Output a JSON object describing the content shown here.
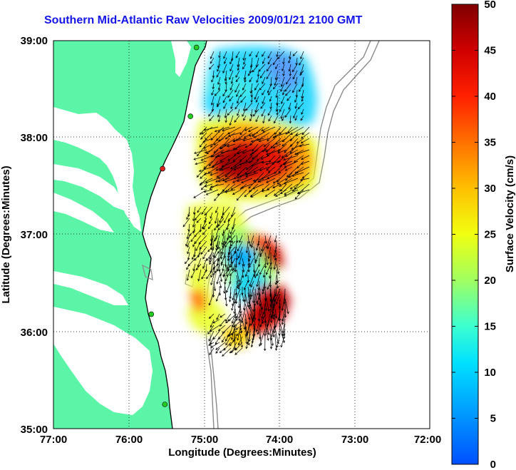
{
  "title": "Southern Mid-Atlantic Raw Velocities 2009/01/21 2100 GMT",
  "map": {
    "xlabel": "Longitude (Degrees:Minutes)",
    "ylabel": "Latitude (Degrees:Minutes)",
    "lon_ticks": [
      "77:00",
      "76:00",
      "75:00",
      "74:00",
      "73:00",
      "72:00"
    ],
    "lat_ticks": [
      "39:00",
      "38:00",
      "37:00",
      "36:00",
      "35:00"
    ],
    "lon_range": [
      -77,
      -72
    ],
    "lat_range": [
      35,
      39
    ],
    "land_color": "#5cf5a8",
    "grid": "dotted"
  },
  "colorbar": {
    "label": "Surface Velocity (cm/s)",
    "ticks": [
      "0",
      "5",
      "10",
      "15",
      "20",
      "25",
      "30",
      "35",
      "40",
      "45",
      "50"
    ],
    "range": [
      0,
      50
    ],
    "colormap": "jet"
  },
  "stations": [
    {
      "lat": 38.93,
      "lon": -75.1,
      "color": "#22cc22"
    },
    {
      "lat": 38.22,
      "lon": -75.18,
      "color": "#22cc22"
    },
    {
      "lat": 37.68,
      "lon": -75.55,
      "color": "#dd2222"
    },
    {
      "lat": 36.18,
      "lon": -75.7,
      "color": "#22cc22"
    },
    {
      "lat": 35.25,
      "lon": -75.52,
      "color": "#22cc22"
    }
  ]
}
